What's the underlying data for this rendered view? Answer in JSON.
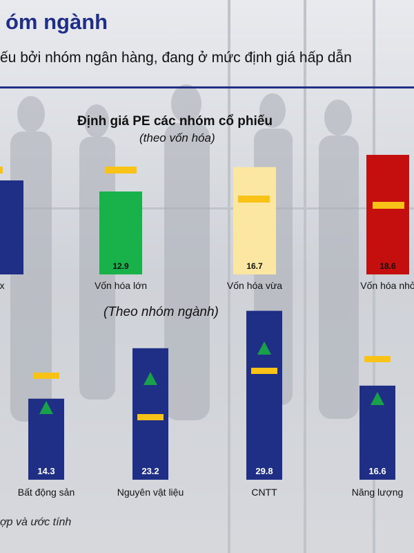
{
  "header": {
    "title": "óm ngành",
    "subtitle": "ếu bởi nhóm ngân hàng, đang ở mức định giá hấp dẫn"
  },
  "footnote": "ợp và ước tính",
  "colors": {
    "navy": "#1f2f86",
    "green": "#19b14a",
    "light_yellow": "#fbe6a2",
    "red": "#c50f0f",
    "marker_yellow": "#f8c316",
    "marker_green": "#19a04a"
  },
  "chart_data": [
    {
      "type": "bar",
      "title": "Định giá PE các nhóm cổ phiếu",
      "subtitle": "(theo vốn hóa)",
      "categories": [
        "x",
        "Vốn hóa lớn",
        "Vốn hóa vừa",
        "Vốn hóa nhỏ"
      ],
      "values": [
        null,
        12.9,
        16.7,
        18.6
      ],
      "value_labels": [
        "",
        "12.9",
        "16.7",
        "18.6"
      ],
      "bar_colors": [
        "#1f2f86",
        "#19b14a",
        "#fbe6a2",
        "#c50f0f"
      ],
      "reference_markers": [
        null,
        null,
        null,
        null
      ],
      "marker_shape": "dash",
      "marker_color": "#f8c316",
      "grid": false,
      "legend": "none"
    },
    {
      "type": "bar",
      "subtitle": "(Theo nhóm ngành)",
      "categories": [
        "Bất động sản",
        "Nguyên vật liệu",
        "CNTT",
        "Năng lượng"
      ],
      "values": [
        14.3,
        23.2,
        29.8,
        16.6
      ],
      "value_labels": [
        "14.3",
        "23.2",
        "29.8",
        "16.6"
      ],
      "bar_color": "#1f2f86",
      "reference_markers": [
        null,
        null,
        null,
        null
      ],
      "marker_shape": "dash",
      "marker_color": "#f8c316",
      "trend_markers": [
        "up",
        "up",
        "up",
        "up"
      ],
      "trend_color": "#19a04a",
      "grid": false,
      "legend": "none"
    }
  ]
}
